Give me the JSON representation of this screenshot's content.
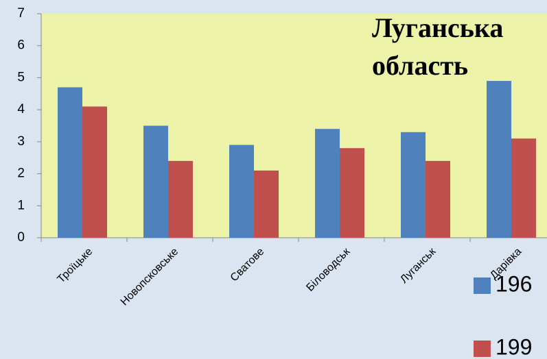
{
  "chart_data": {
    "type": "bar",
    "title": [
      "Луганська",
      "область"
    ],
    "categories": [
      "Троїцьке",
      "Новопсковське",
      "Сватове",
      "Біловодськ",
      "Луганськ",
      "Дарівка"
    ],
    "series": [
      {
        "name": "196",
        "color": "#4f81bd",
        "values": [
          4.7,
          3.5,
          2.9,
          3.4,
          3.3,
          4.9
        ]
      },
      {
        "name": "199",
        "color": "#c0504d",
        "values": [
          4.1,
          2.4,
          2.1,
          2.8,
          2.4,
          3.1
        ]
      }
    ],
    "ylim": [
      0,
      7
    ],
    "yticks": [
      0,
      1,
      2,
      3,
      4,
      5,
      6,
      7
    ],
    "grid": false,
    "legend": "right"
  }
}
